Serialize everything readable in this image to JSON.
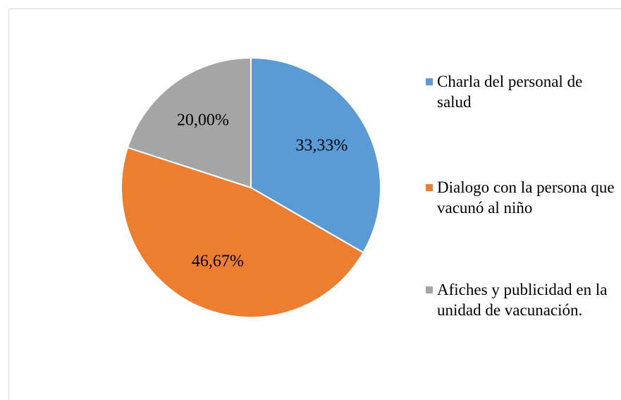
{
  "chart_data": {
    "type": "pie",
    "categories": [
      "Charla del personal de salud",
      "Dialogo con la persona que vacunó al niño",
      "Afiches y publicidad en la unidad de vacunación."
    ],
    "values": [
      33.33,
      46.67,
      20.0
    ],
    "value_labels": [
      "33,33%",
      "46,67%",
      "20,00%"
    ],
    "colors": [
      "#5b9bd5",
      "#ed7d31",
      "#a5a5a5"
    ],
    "legend": "right"
  }
}
